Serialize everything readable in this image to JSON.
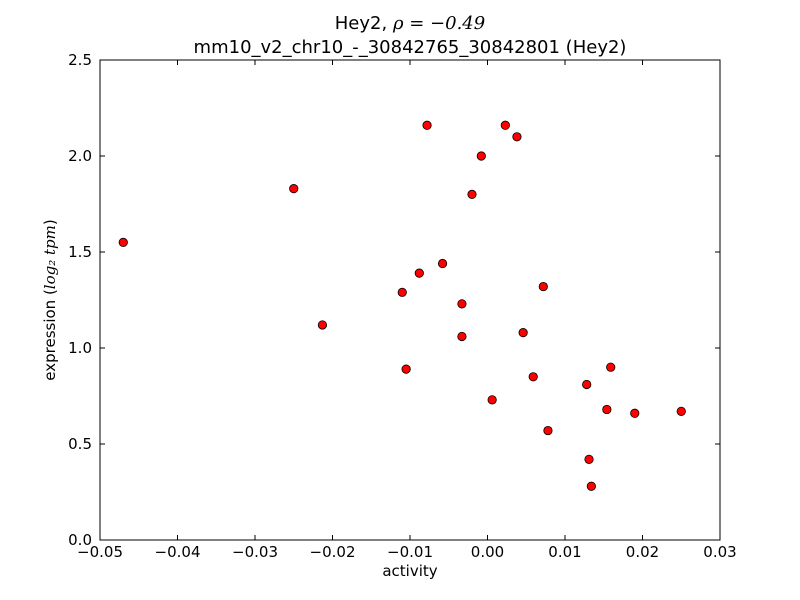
{
  "chart_data": {
    "type": "scatter",
    "title": "Hey2, ",
    "title_math": "ρ = −0.49",
    "subtitle": "mm10_v2_chr10_-_30842765_30842801 (Hey2)",
    "xlabel": "activity",
    "ylabel": "expression (",
    "ylabel_math": "log₂ tpm",
    "ylabel_close": ")",
    "xlim": [
      -0.05,
      0.03
    ],
    "ylim": [
      0.0,
      2.5
    ],
    "xticks": [
      -0.05,
      -0.04,
      -0.03,
      -0.02,
      -0.01,
      0.0,
      0.01,
      0.02,
      0.03
    ],
    "xtick_labels": [
      "−0.05",
      "−0.04",
      "−0.03",
      "−0.02",
      "−0.01",
      "0.00",
      "0.01",
      "0.02",
      "0.03"
    ],
    "yticks": [
      0.0,
      0.5,
      1.0,
      1.5,
      2.0,
      2.5
    ],
    "ytick_labels": [
      "0.0",
      "0.5",
      "1.0",
      "1.5",
      "2.0",
      "2.5"
    ],
    "grid": false,
    "marker_color": "#ff0000",
    "marker_edge": "#000000",
    "points": [
      {
        "x": -0.047,
        "y": 1.55
      },
      {
        "x": -0.025,
        "y": 1.83
      },
      {
        "x": -0.0213,
        "y": 1.12
      },
      {
        "x": -0.011,
        "y": 1.29
      },
      {
        "x": -0.0105,
        "y": 0.89
      },
      {
        "x": -0.0088,
        "y": 1.39
      },
      {
        "x": -0.0078,
        "y": 2.16
      },
      {
        "x": -0.0058,
        "y": 1.44
      },
      {
        "x": -0.0033,
        "y": 1.23
      },
      {
        "x": -0.0033,
        "y": 1.06
      },
      {
        "x": -0.002,
        "y": 1.8
      },
      {
        "x": -0.0008,
        "y": 2.0
      },
      {
        "x": 0.0006,
        "y": 0.73
      },
      {
        "x": 0.0023,
        "y": 2.16
      },
      {
        "x": 0.0038,
        "y": 2.1
      },
      {
        "x": 0.0046,
        "y": 1.08
      },
      {
        "x": 0.0059,
        "y": 0.85
      },
      {
        "x": 0.0072,
        "y": 1.32
      },
      {
        "x": 0.0078,
        "y": 0.57
      },
      {
        "x": 0.0128,
        "y": 0.81
      },
      {
        "x": 0.0131,
        "y": 0.42
      },
      {
        "x": 0.0134,
        "y": 0.28
      },
      {
        "x": 0.0154,
        "y": 0.68
      },
      {
        "x": 0.0159,
        "y": 0.9
      },
      {
        "x": 0.019,
        "y": 0.66
      },
      {
        "x": 0.025,
        "y": 0.67
      }
    ]
  }
}
